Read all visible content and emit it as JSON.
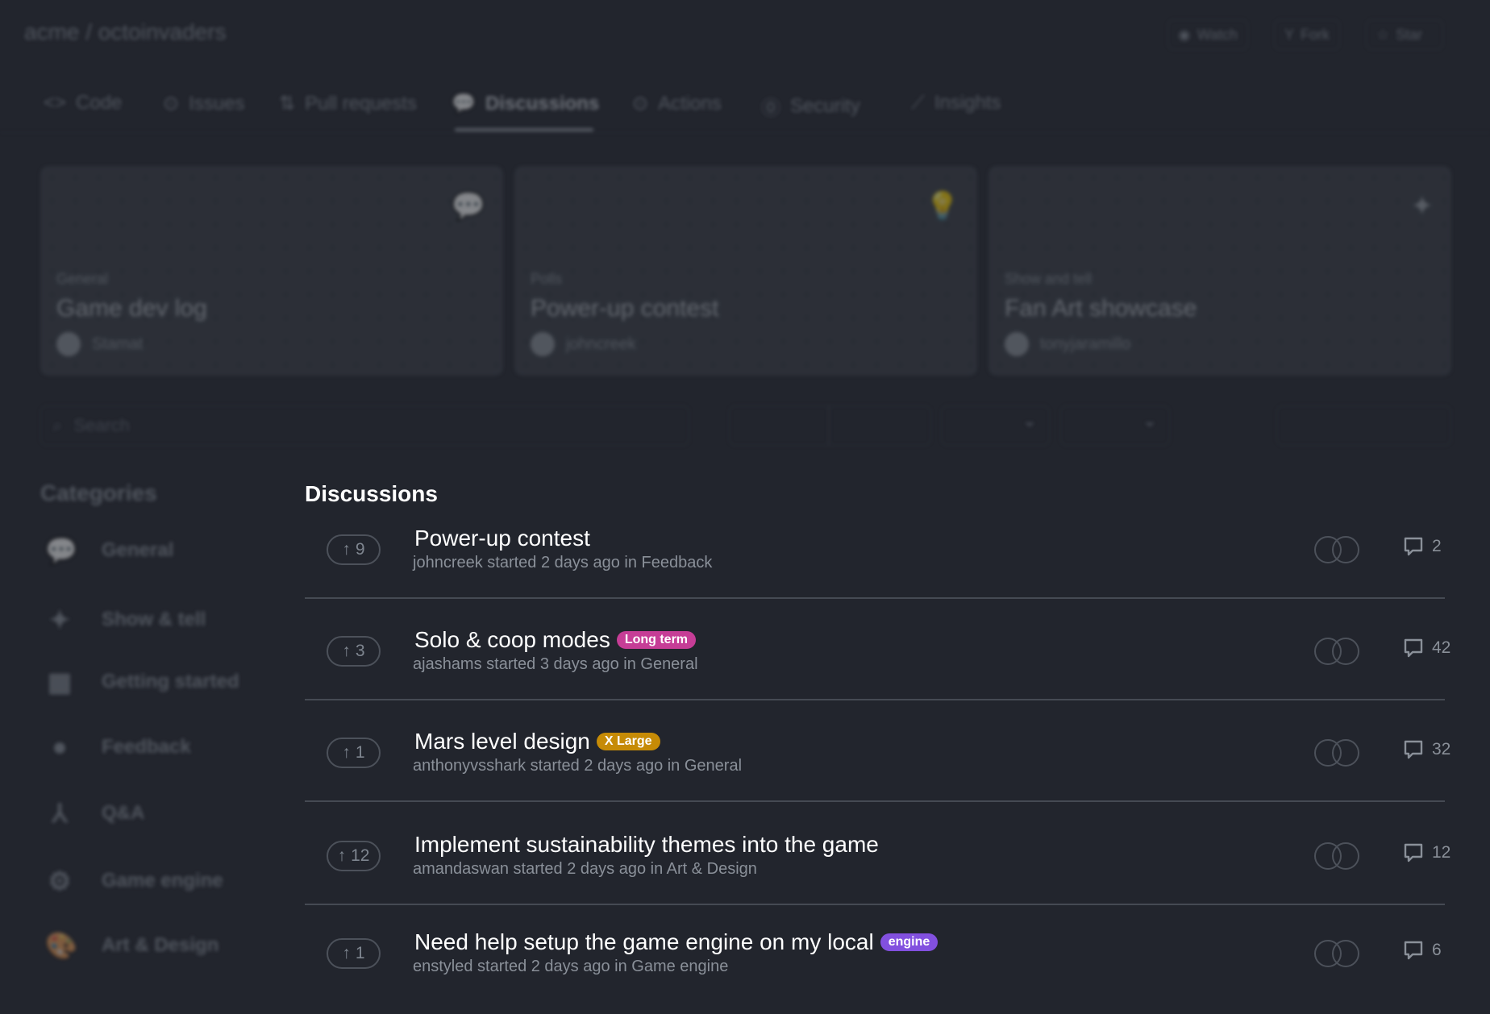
{
  "repo": {
    "title": "acme / octoinvaders",
    "watch": "Watch",
    "fork": "Fork",
    "star": "Star"
  },
  "tabs": [
    {
      "label": "Code",
      "icon": "code-icon"
    },
    {
      "label": "Issues",
      "icon": "issue-icon"
    },
    {
      "label": "Pull requests",
      "icon": "pull-request-icon"
    },
    {
      "label": "Discussions",
      "icon": "discussion-icon",
      "active": true
    },
    {
      "label": "Actions",
      "icon": "play-icon"
    },
    {
      "label": "Security",
      "icon": "shield-icon"
    },
    {
      "label": "Insights",
      "icon": "graph-icon"
    }
  ],
  "featured": [
    {
      "category": "General",
      "title": "Game dev log",
      "author": "Stamat",
      "icon": "speech-bubble-icon"
    },
    {
      "category": "Polls",
      "title": "Power-up contest",
      "author": "johncreek",
      "icon": "lightbulb-icon"
    },
    {
      "category": "Show and tell",
      "title": "Fan Art showcase",
      "author": "tonyjaramillo",
      "icon": "sparkles-icon"
    }
  ],
  "search": {
    "placeholder": "Search"
  },
  "sidebar": {
    "heading": "Categories",
    "items": [
      {
        "label": "General",
        "icon": "speech-bubble-icon"
      },
      {
        "label": "Show & tell",
        "icon": "sparkles-icon"
      },
      {
        "label": "Getting started",
        "icon": "grid-icon"
      },
      {
        "label": "Feedback",
        "icon": "lightbulb-icon"
      },
      {
        "label": "Q&A",
        "icon": "fork-icon"
      },
      {
        "label": "Game engine",
        "icon": "engine-icon"
      },
      {
        "label": "Art & Design",
        "icon": "palette-icon"
      }
    ]
  },
  "main": {
    "heading": "Discussions",
    "discussions": [
      {
        "votes": "9",
        "title": "Power-up contest",
        "meta": "johncreek started 2 days ago in Feedback",
        "comments": "2"
      },
      {
        "votes": "3",
        "title": "Solo & coop modes",
        "label": "Long term",
        "label_color": "#c63d96",
        "meta": "ajashams started 3 days ago in General",
        "comments": "42"
      },
      {
        "votes": "1",
        "title": "Mars level design",
        "label": "X Large",
        "label_color": "#c68b06",
        "meta": "anthonyvsshark started 2 days ago in General",
        "comments": "32"
      },
      {
        "votes": "12",
        "title": "Implement sustainability themes into the game",
        "meta": "amandaswan started 2 days ago in Art & Design",
        "comments": "12"
      },
      {
        "votes": "1",
        "title": "Need help setup the game engine on my local",
        "label": "engine",
        "label_color": "#8250df",
        "meta": "enstyled started 2 days ago in Game engine",
        "comments": "6"
      }
    ]
  }
}
